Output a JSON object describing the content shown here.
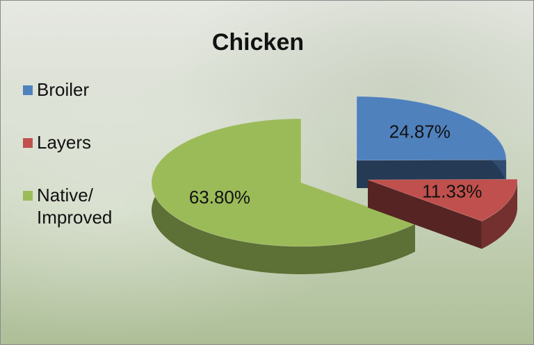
{
  "chart_data": {
    "type": "pie",
    "title": "Chicken",
    "categories": [
      "Broiler",
      "Layers",
      "Native/ Improved"
    ],
    "values": [
      24.87,
      11.33,
      63.8
    ],
    "value_labels": [
      "24.87%",
      "11.33%",
      "63.80%"
    ],
    "colors": [
      "#4f81bd",
      "#c0504d",
      "#9bbb59"
    ],
    "legend": "left"
  }
}
